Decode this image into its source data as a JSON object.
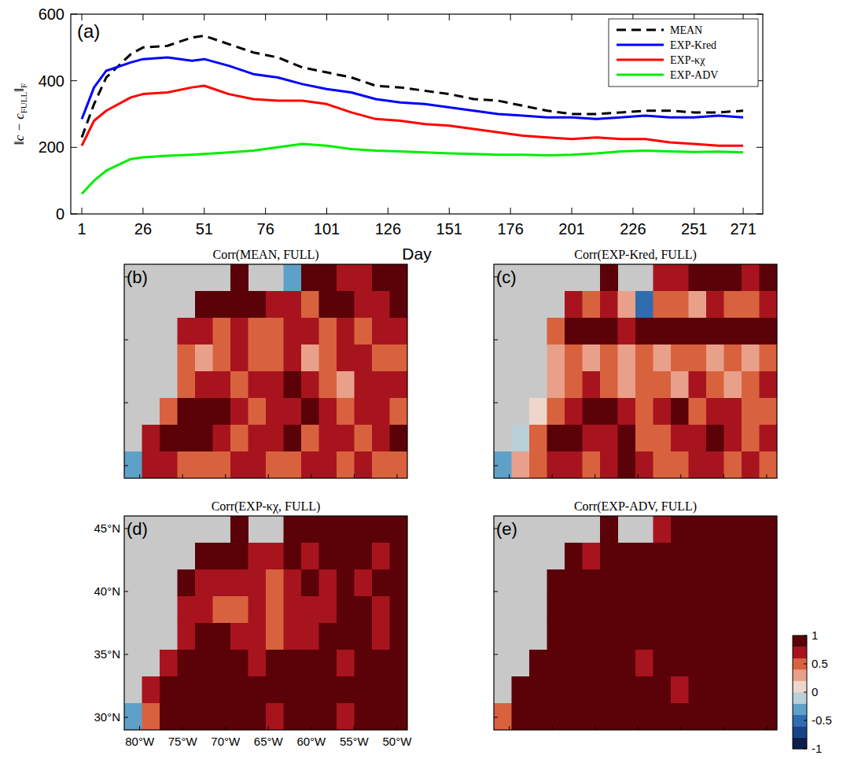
{
  "chart_data": [
    {
      "type": "line",
      "panel_label": "(a)",
      "xlabel": "Day",
      "ylabel": [
        "‖c − c",
        "FULL",
        "‖",
        "F"
      ],
      "x": [
        1,
        6,
        11,
        21,
        26,
        36,
        46,
        51,
        61,
        71,
        81,
        91,
        101,
        111,
        121,
        131,
        141,
        151,
        161,
        171,
        181,
        191,
        201,
        211,
        221,
        231,
        241,
        251,
        261,
        271
      ],
      "series": [
        {
          "name": "MEAN",
          "color": "#000000",
          "line_style": "dashed",
          "values": [
            230,
            330,
            410,
            480,
            500,
            505,
            530,
            535,
            510,
            485,
            470,
            440,
            425,
            410,
            385,
            380,
            370,
            360,
            345,
            340,
            325,
            310,
            300,
            300,
            305,
            310,
            310,
            305,
            305,
            310
          ]
        },
        {
          "name": "EXP-Kred",
          "color": "#0000ff",
          "line_style": "solid",
          "values": [
            285,
            380,
            430,
            455,
            465,
            470,
            460,
            465,
            445,
            420,
            410,
            390,
            375,
            365,
            345,
            335,
            330,
            320,
            310,
            300,
            295,
            290,
            290,
            285,
            290,
            295,
            290,
            290,
            295,
            290
          ]
        },
        {
          "name": "EXP-κχ",
          "color": "#ff0000",
          "line_style": "solid",
          "values": [
            205,
            280,
            310,
            350,
            360,
            365,
            380,
            385,
            360,
            345,
            340,
            340,
            330,
            305,
            285,
            280,
            270,
            265,
            255,
            245,
            235,
            230,
            225,
            230,
            225,
            225,
            215,
            210,
            205,
            205
          ]
        },
        {
          "name": "EXP-ADV",
          "color": "#00ee00",
          "line_style": "solid",
          "values": [
            60,
            100,
            130,
            165,
            170,
            175,
            178,
            180,
            185,
            190,
            200,
            210,
            205,
            195,
            190,
            188,
            185,
            182,
            180,
            178,
            178,
            176,
            178,
            182,
            188,
            190,
            188,
            186,
            187,
            185
          ]
        }
      ],
      "xlim": [
        -3.5,
        279
      ],
      "ylim": [
        0,
        600
      ],
      "xticks": [
        1,
        26,
        51,
        76,
        101,
        126,
        151,
        176,
        201,
        226,
        251,
        271
      ],
      "yticks": [
        0,
        200,
        400,
        600
      ],
      "legend": "upper right"
    },
    {
      "type": "heatmap",
      "panel_label": "(b)",
      "title": "Corr(MEAN, FULL)",
      "tick_labels": false,
      "xlim": [
        -81.8,
        -48.8
      ],
      "ylim": [
        29,
        46
      ],
      "xticks": [
        {
          "value": -80,
          "label": "80°W"
        },
        {
          "value": -75,
          "label": "75°W"
        },
        {
          "value": -70,
          "label": "70°W"
        },
        {
          "value": -65,
          "label": "65°W"
        },
        {
          "value": -60,
          "label": "60°W"
        },
        {
          "value": -55,
          "label": "55°W"
        },
        {
          "value": -50,
          "label": "50°W"
        }
      ],
      "yticks": [
        {
          "value": 30,
          "label": "30°N"
        },
        {
          "value": 35,
          "label": "35°N"
        },
        {
          "value": 40,
          "label": "40°N"
        },
        {
          "value": 45,
          "label": "45°N"
        }
      ],
      "cells": [
        [
          null,
          null,
          null,
          null,
          null,
          null,
          0.9,
          null,
          null,
          -0.4,
          0.8,
          0.9,
          0.7,
          0.6,
          0.8,
          0.9
        ],
        [
          null,
          null,
          null,
          null,
          0.9,
          0.95,
          0.9,
          0.8,
          0.6,
          0.7,
          0.5,
          0.8,
          0.9,
          0.7,
          0.6,
          0.8
        ],
        [
          null,
          null,
          null,
          0.6,
          0.7,
          0.5,
          0.6,
          0.4,
          0.5,
          0.6,
          0.7,
          0.5,
          0.6,
          0.4,
          0.7,
          0.6
        ],
        [
          null,
          null,
          null,
          0.5,
          0.3,
          0.5,
          0.6,
          0.5,
          0.4,
          0.6,
          0.3,
          0.5,
          0.7,
          0.6,
          0.4,
          0.5
        ],
        [
          null,
          null,
          null,
          0.4,
          0.6,
          0.7,
          0.5,
          0.6,
          0.7,
          0.8,
          0.6,
          0.5,
          0.3,
          0.6,
          0.7,
          0.6
        ],
        [
          null,
          null,
          0.5,
          0.8,
          0.9,
          0.8,
          0.6,
          0.5,
          0.6,
          0.7,
          0.8,
          0.6,
          0.5,
          0.7,
          0.6,
          0.4
        ],
        [
          null,
          0.6,
          0.8,
          0.9,
          0.8,
          0.6,
          0.5,
          0.6,
          0.7,
          0.8,
          0.5,
          0.6,
          0.7,
          0.5,
          0.6,
          0.8
        ],
        [
          -0.3,
          0.7,
          0.6,
          0.5,
          0.4,
          0.5,
          0.6,
          0.7,
          0.5,
          0.4,
          0.6,
          0.7,
          0.5,
          0.6,
          0.5,
          0.4
        ]
      ]
    },
    {
      "type": "heatmap",
      "panel_label": "(c)",
      "title": "Corr(EXP-Kred, FULL)",
      "tick_labels": false,
      "xlim": [
        -81.8,
        -48.8
      ],
      "ylim": [
        29,
        46
      ],
      "xticks": [
        {
          "value": -80,
          "label": "80°W"
        },
        {
          "value": -75,
          "label": "75°W"
        },
        {
          "value": -70,
          "label": "70°W"
        },
        {
          "value": -65,
          "label": "65°W"
        },
        {
          "value": -60,
          "label": "60°W"
        },
        {
          "value": -55,
          "label": "55°W"
        },
        {
          "value": -50,
          "label": "50°W"
        }
      ],
      "yticks": [
        {
          "value": 30,
          "label": "30°N"
        },
        {
          "value": 35,
          "label": "35°N"
        },
        {
          "value": 40,
          "label": "40°N"
        },
        {
          "value": 45,
          "label": "45°N"
        }
      ],
      "cells": [
        [
          null,
          null,
          null,
          null,
          null,
          null,
          0.8,
          null,
          null,
          0.6,
          0.7,
          0.8,
          0.9,
          0.8,
          0.7,
          0.9
        ],
        [
          null,
          null,
          null,
          null,
          0.7,
          0.5,
          0.6,
          0.3,
          -0.5,
          0.4,
          0.5,
          0.3,
          0.6,
          0.4,
          0.5,
          0.6
        ],
        [
          null,
          null,
          null,
          0.5,
          0.9,
          0.9,
          0.8,
          0.7,
          0.9,
          0.9,
          0.8,
          0.9,
          0.9,
          0.8,
          0.9,
          0.9
        ],
        [
          null,
          null,
          null,
          0.2,
          0.4,
          0.3,
          0.5,
          0.2,
          0.4,
          0.3,
          0.5,
          0.4,
          0.2,
          0.5,
          0.3,
          0.4
        ],
        [
          null,
          null,
          null,
          0.3,
          0.5,
          0.6,
          0.4,
          0.3,
          0.5,
          0.4,
          0.3,
          0.6,
          0.4,
          0.3,
          0.5,
          0.6
        ],
        [
          null,
          null,
          0.1,
          0.5,
          0.7,
          0.8,
          0.9,
          0.6,
          0.5,
          0.7,
          0.8,
          0.5,
          0.6,
          0.7,
          0.5,
          0.4
        ],
        [
          null,
          -0.2,
          0.4,
          0.8,
          0.9,
          0.7,
          0.6,
          0.8,
          0.5,
          0.4,
          0.6,
          0.7,
          0.8,
          0.6,
          0.5,
          0.7
        ],
        [
          -0.3,
          0.2,
          0.5,
          0.7,
          0.6,
          0.5,
          0.7,
          0.8,
          0.6,
          0.5,
          0.4,
          0.6,
          0.7,
          0.5,
          0.6,
          0.5
        ]
      ]
    },
    {
      "type": "heatmap",
      "panel_label": "(d)",
      "title": "Corr(EXP-κχ, FULL)",
      "tick_labels": true,
      "xlim": [
        -81.8,
        -48.8
      ],
      "ylim": [
        29,
        46
      ],
      "xticks": [
        {
          "value": -80,
          "label": "80°W"
        },
        {
          "value": -75,
          "label": "75°W"
        },
        {
          "value": -70,
          "label": "70°W"
        },
        {
          "value": -65,
          "label": "65°W"
        },
        {
          "value": -60,
          "label": "60°W"
        },
        {
          "value": -55,
          "label": "55°W"
        },
        {
          "value": -50,
          "label": "50°W"
        }
      ],
      "yticks": [
        {
          "value": 30,
          "label": "30°N"
        },
        {
          "value": 35,
          "label": "35°N"
        },
        {
          "value": 40,
          "label": "40°N"
        },
        {
          "value": 45,
          "label": "45°N"
        }
      ],
      "cells": [
        [
          null,
          null,
          null,
          null,
          null,
          null,
          0.9,
          null,
          null,
          0.8,
          0.9,
          0.9,
          0.9,
          0.8,
          0.9,
          0.9
        ],
        [
          null,
          null,
          null,
          null,
          0.95,
          0.9,
          0.8,
          0.7,
          0.6,
          0.8,
          0.7,
          0.8,
          0.9,
          0.8,
          0.7,
          0.9
        ],
        [
          null,
          null,
          null,
          0.8,
          0.7,
          0.6,
          0.7,
          0.6,
          0.5,
          0.7,
          0.8,
          0.7,
          0.8,
          0.7,
          0.9,
          0.8
        ],
        [
          null,
          null,
          null,
          0.7,
          0.6,
          0.5,
          0.4,
          0.6,
          0.5,
          0.7,
          0.6,
          0.7,
          0.8,
          0.9,
          0.7,
          0.8
        ],
        [
          null,
          null,
          null,
          0.6,
          0.8,
          0.9,
          0.7,
          0.6,
          0.5,
          0.6,
          0.7,
          0.8,
          0.9,
          0.8,
          0.7,
          0.9
        ],
        [
          null,
          null,
          0.7,
          0.9,
          0.95,
          0.9,
          0.8,
          0.7,
          0.8,
          0.9,
          0.9,
          0.8,
          0.7,
          0.8,
          0.9,
          0.8
        ],
        [
          null,
          0.7,
          0.9,
          0.95,
          0.9,
          0.8,
          0.9,
          0.95,
          0.9,
          0.8,
          0.9,
          0.9,
          0.8,
          0.9,
          0.95,
          0.9
        ],
        [
          -0.4,
          0.5,
          0.8,
          0.9,
          0.8,
          0.9,
          0.8,
          0.9,
          0.7,
          0.8,
          0.9,
          0.8,
          0.7,
          0.8,
          0.9,
          0.8
        ]
      ]
    },
    {
      "type": "heatmap",
      "panel_label": "(e)",
      "title": "Corr(EXP-ADV, FULL)",
      "tick_labels": false,
      "xlim": [
        -81.8,
        -48.8
      ],
      "ylim": [
        29,
        46
      ],
      "xticks": [
        {
          "value": -80,
          "label": "80°W"
        },
        {
          "value": -75,
          "label": "75°W"
        },
        {
          "value": -70,
          "label": "70°W"
        },
        {
          "value": -65,
          "label": "65°W"
        },
        {
          "value": -60,
          "label": "60°W"
        },
        {
          "value": -55,
          "label": "55°W"
        },
        {
          "value": -50,
          "label": "50°W"
        }
      ],
      "yticks": [
        {
          "value": 30,
          "label": "30°N"
        },
        {
          "value": 35,
          "label": "35°N"
        },
        {
          "value": 40,
          "label": "40°N"
        },
        {
          "value": 45,
          "label": "45°N"
        }
      ],
      "cells": [
        [
          null,
          null,
          null,
          null,
          null,
          null,
          0.95,
          null,
          null,
          0.7,
          0.9,
          0.95,
          0.98,
          0.98,
          0.98,
          0.98
        ],
        [
          null,
          null,
          null,
          null,
          0.9,
          0.7,
          0.95,
          0.98,
          0.95,
          0.9,
          0.98,
          0.98,
          0.98,
          0.98,
          0.98,
          0.98
        ],
        [
          null,
          null,
          null,
          0.9,
          0.95,
          0.98,
          0.98,
          0.98,
          0.98,
          0.98,
          0.98,
          0.98,
          0.98,
          0.98,
          0.98,
          0.98
        ],
        [
          null,
          null,
          null,
          0.95,
          0.98,
          0.9,
          0.98,
          0.98,
          0.98,
          0.98,
          0.98,
          0.98,
          0.98,
          0.98,
          0.98,
          0.98
        ],
        [
          null,
          null,
          null,
          0.95,
          0.98,
          0.98,
          0.9,
          0.98,
          0.98,
          0.98,
          0.98,
          0.9,
          0.98,
          0.98,
          0.98,
          0.98
        ],
        [
          null,
          null,
          0.9,
          0.98,
          0.98,
          0.98,
          0.98,
          0.98,
          0.7,
          0.98,
          0.98,
          0.98,
          0.98,
          0.98,
          0.98,
          0.98
        ],
        [
          null,
          0.8,
          0.98,
          0.98,
          0.98,
          0.98,
          0.98,
          0.98,
          0.98,
          0.98,
          0.7,
          0.9,
          0.98,
          0.98,
          0.98,
          0.98
        ],
        [
          0.5,
          0.95,
          0.98,
          0.98,
          0.98,
          0.98,
          0.98,
          0.98,
          0.98,
          0.98,
          0.98,
          0.98,
          0.98,
          0.98,
          0.98,
          0.98
        ]
      ],
      "colorbar": {
        "range": [
          -1,
          1
        ],
        "ticks": [
          -1,
          -0.5,
          0,
          0.5,
          1
        ],
        "colors": [
          "#0b1f4a",
          "#16438a",
          "#2f6db0",
          "#5fa0c8",
          "#b9d0d8",
          "#efd6cc",
          "#e9a08a",
          "#d9623e",
          "#a8141e",
          "#5a0208"
        ]
      }
    }
  ]
}
